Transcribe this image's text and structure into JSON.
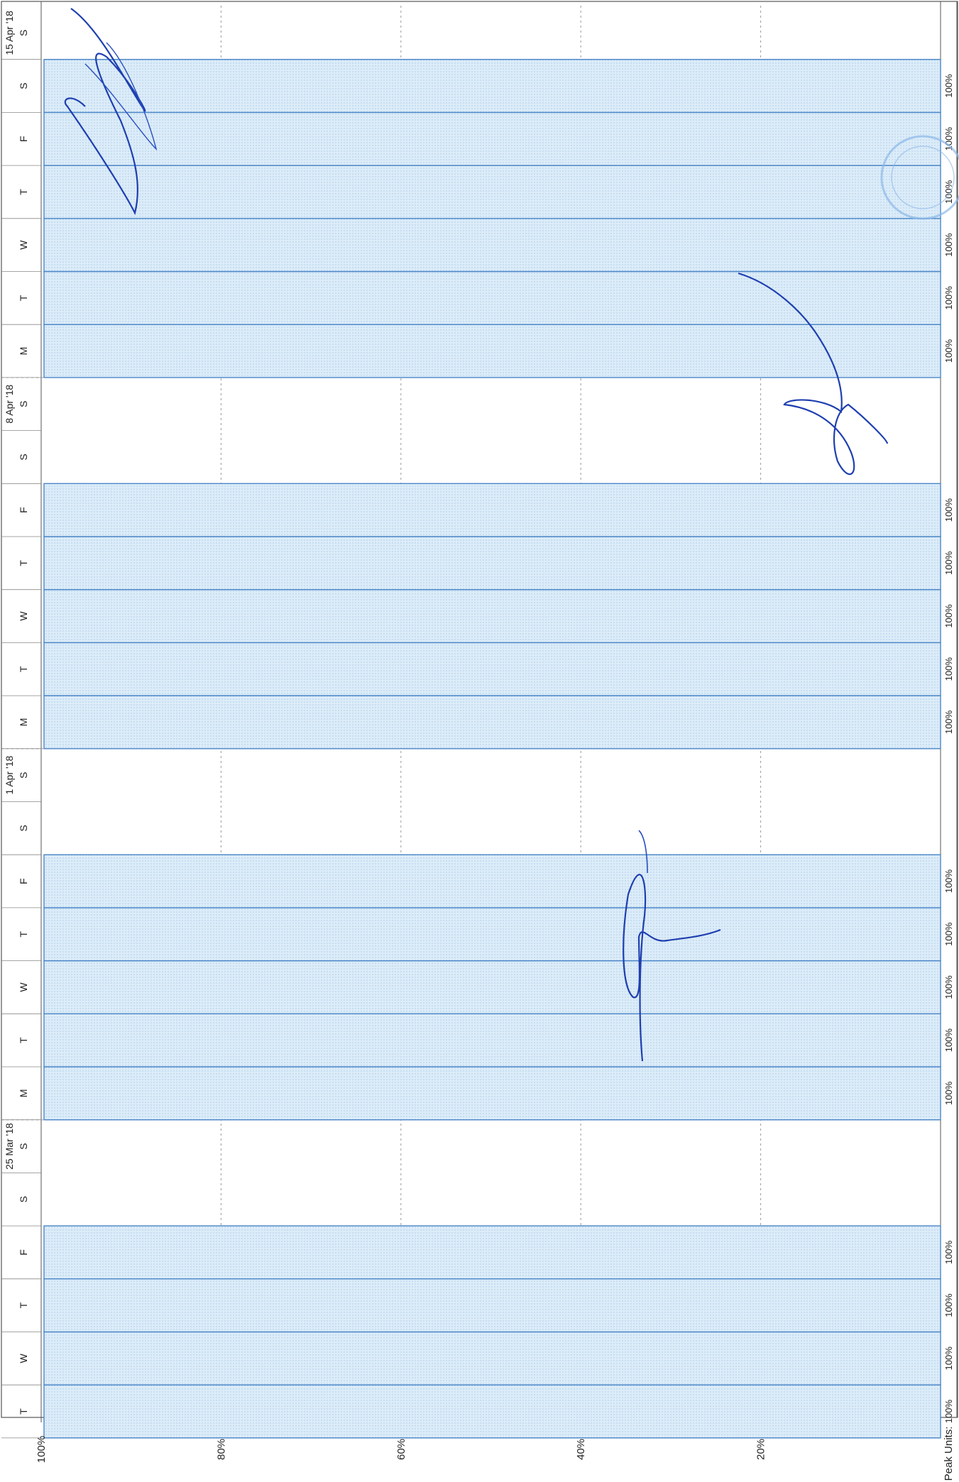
{
  "chart_data": {
    "type": "bar",
    "orientation": "horizontal-rotated",
    "week_labels": [
      "25 Mar '18",
      "1 Apr '18",
      "8 Apr '18",
      "15 Apr '18"
    ],
    "days": [
      {
        "day": "T",
        "value": 100,
        "label": "100%"
      },
      {
        "day": "W",
        "value": 100,
        "label": "100%"
      },
      {
        "day": "T",
        "value": 100,
        "label": "100%"
      },
      {
        "day": "F",
        "value": 100,
        "label": "100%"
      },
      {
        "day": "S",
        "value": 0,
        "label": ""
      },
      {
        "day": "S",
        "value": 0,
        "label": ""
      },
      {
        "day": "M",
        "value": 100,
        "label": "100%"
      },
      {
        "day": "T",
        "value": 100,
        "label": "100%"
      },
      {
        "day": "W",
        "value": 100,
        "label": "100%"
      },
      {
        "day": "T",
        "value": 100,
        "label": "100%"
      },
      {
        "day": "F",
        "value": 100,
        "label": "100%"
      },
      {
        "day": "S",
        "value": 0,
        "label": ""
      },
      {
        "day": "S",
        "value": 0,
        "label": ""
      },
      {
        "day": "M",
        "value": 100,
        "label": "100%"
      },
      {
        "day": "T",
        "value": 100,
        "label": "100%"
      },
      {
        "day": "W",
        "value": 100,
        "label": "100%"
      },
      {
        "day": "T",
        "value": 100,
        "label": "100%"
      },
      {
        "day": "F",
        "value": 100,
        "label": "100%"
      },
      {
        "day": "S",
        "value": 0,
        "label": ""
      },
      {
        "day": "S",
        "value": 0,
        "label": ""
      },
      {
        "day": "M",
        "value": 100,
        "label": "100%"
      },
      {
        "day": "T",
        "value": 100,
        "label": "100%"
      },
      {
        "day": "W",
        "value": 100,
        "label": "100%"
      },
      {
        "day": "T",
        "value": 100,
        "label": "100%"
      },
      {
        "day": "F",
        "value": 100,
        "label": "100%"
      },
      {
        "day": "S",
        "value": 100,
        "label": "100%"
      },
      {
        "day": "S",
        "value": 0,
        "label": ""
      }
    ],
    "ticks": [
      {
        "value": 100,
        "label": "100%"
      },
      {
        "value": 80,
        "label": "80%"
      },
      {
        "value": 60,
        "label": "60%"
      },
      {
        "value": 40,
        "label": "40%"
      },
      {
        "value": 20,
        "label": "20%"
      }
    ],
    "ylim": [
      0,
      100
    ],
    "peak_units_label": "Peak Units:",
    "grid": true,
    "colors": {
      "bar_fill": "#dcecf8",
      "bar_stroke": "#4a86c8",
      "grid": "#9a9a9a",
      "ink": "#1f3fb0"
    }
  }
}
